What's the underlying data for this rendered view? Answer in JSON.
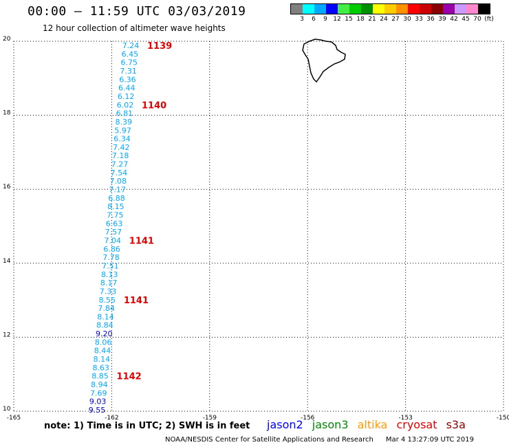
{
  "header": {
    "title": "00:00 – 11:59 UTC 03/03/2019",
    "subtitle": "12 hour collection of altimeter wave heights"
  },
  "legend": {
    "colors": [
      "#808080",
      "#00ffff",
      "#00a8ff",
      "#0000ff",
      "#44ee44",
      "#00cc00",
      "#009000",
      "#ffff00",
      "#ffcc00",
      "#ff9000",
      "#ff0000",
      "#cc0000",
      "#880000",
      "#9900aa",
      "#cc99ff",
      "#ff88cc",
      "#000000"
    ],
    "labels": [
      "3",
      "6",
      "9",
      "12",
      "15",
      "18",
      "21",
      "24",
      "27",
      "30",
      "33",
      "36",
      "39",
      "42",
      "45",
      "70",
      "(ft)"
    ]
  },
  "axes": {
    "lat_ticks": [
      "20",
      "18",
      "16",
      "14",
      "12",
      "10"
    ],
    "lon_ticks": [
      "-165",
      "-162",
      "-159",
      "-156",
      "-153",
      "-150"
    ]
  },
  "observations": [
    {
      "v": "7.24",
      "c": "#00a8ff"
    },
    {
      "v": "6.45",
      "c": "#00a8ff"
    },
    {
      "v": "6.75",
      "c": "#00a8ff"
    },
    {
      "v": "7.31",
      "c": "#00a8ff"
    },
    {
      "v": "6.36",
      "c": "#00a8ff"
    },
    {
      "v": "6.44",
      "c": "#00a8ff"
    },
    {
      "v": "6.12",
      "c": "#00a8ff"
    },
    {
      "v": "6.02",
      "c": "#00a8ff"
    },
    {
      "v": "6.81",
      "c": "#00a8ff"
    },
    {
      "v": "8.39",
      "c": "#00a8ff"
    },
    {
      "v": "5.97",
      "c": "#00a8ff"
    },
    {
      "v": "6.34",
      "c": "#00a8ff"
    },
    {
      "v": "7.42",
      "c": "#00a8ff"
    },
    {
      "v": "7.18",
      "c": "#00a8ff"
    },
    {
      "v": "7.27",
      "c": "#00a8ff"
    },
    {
      "v": "7.54",
      "c": "#00a8ff"
    },
    {
      "v": "7.08",
      "c": "#00a8ff"
    },
    {
      "v": "7.17",
      "c": "#00a8ff"
    },
    {
      "v": "6.88",
      "c": "#00a8ff"
    },
    {
      "v": "8.15",
      "c": "#00a8ff"
    },
    {
      "v": "7.75",
      "c": "#00a8ff"
    },
    {
      "v": "6.63",
      "c": "#00a8ff"
    },
    {
      "v": "7.57",
      "c": "#00a8ff"
    },
    {
      "v": "7.04",
      "c": "#00a8ff"
    },
    {
      "v": "6.86",
      "c": "#00a8ff"
    },
    {
      "v": "7.78",
      "c": "#00a8ff"
    },
    {
      "v": "7.51",
      "c": "#00a8ff"
    },
    {
      "v": "8.13",
      "c": "#00a8ff"
    },
    {
      "v": "8.17",
      "c": "#00a8ff"
    },
    {
      "v": "7.33",
      "c": "#00a8ff"
    },
    {
      "v": "8.55",
      "c": "#00a8ff"
    },
    {
      "v": "7.84",
      "c": "#00a8ff"
    },
    {
      "v": "8.14",
      "c": "#00a8ff"
    },
    {
      "v": "8.84",
      "c": "#00a8ff"
    },
    {
      "v": "9.20",
      "c": "#0000cc"
    },
    {
      "v": "8.06",
      "c": "#00a8ff"
    },
    {
      "v": "8.44",
      "c": "#00a8ff"
    },
    {
      "v": "8.14",
      "c": "#00a8ff"
    },
    {
      "v": "8.63",
      "c": "#00a8ff"
    },
    {
      "v": "8.85",
      "c": "#00a8ff"
    },
    {
      "v": "8.94",
      "c": "#00a8ff"
    },
    {
      "v": "7.69",
      "c": "#00a8ff"
    },
    {
      "v": "9.03",
      "c": "#0000cc"
    },
    {
      "v": "9.55",
      "c": "#0000cc"
    }
  ],
  "passes": [
    "1139",
    "1140",
    "1141",
    "1141",
    "1142"
  ],
  "footer": {
    "note": "note: 1) Time is in UTC; 2) SWH is in feet",
    "satellites": [
      {
        "name": "jason2",
        "color": "#0000ff"
      },
      {
        "name": "jason3",
        "color": "#008800"
      },
      {
        "name": "altika",
        "color": "#ff9900"
      },
      {
        "name": "cryosat",
        "color": "#dd0000"
      },
      {
        "name": "s3a",
        "color": "#880000"
      }
    ],
    "credit": "NOAA/NESDIS Center for Satellite Applications and Research",
    "timestamp": "Mar  4 13:27:09 UTC 2019"
  }
}
